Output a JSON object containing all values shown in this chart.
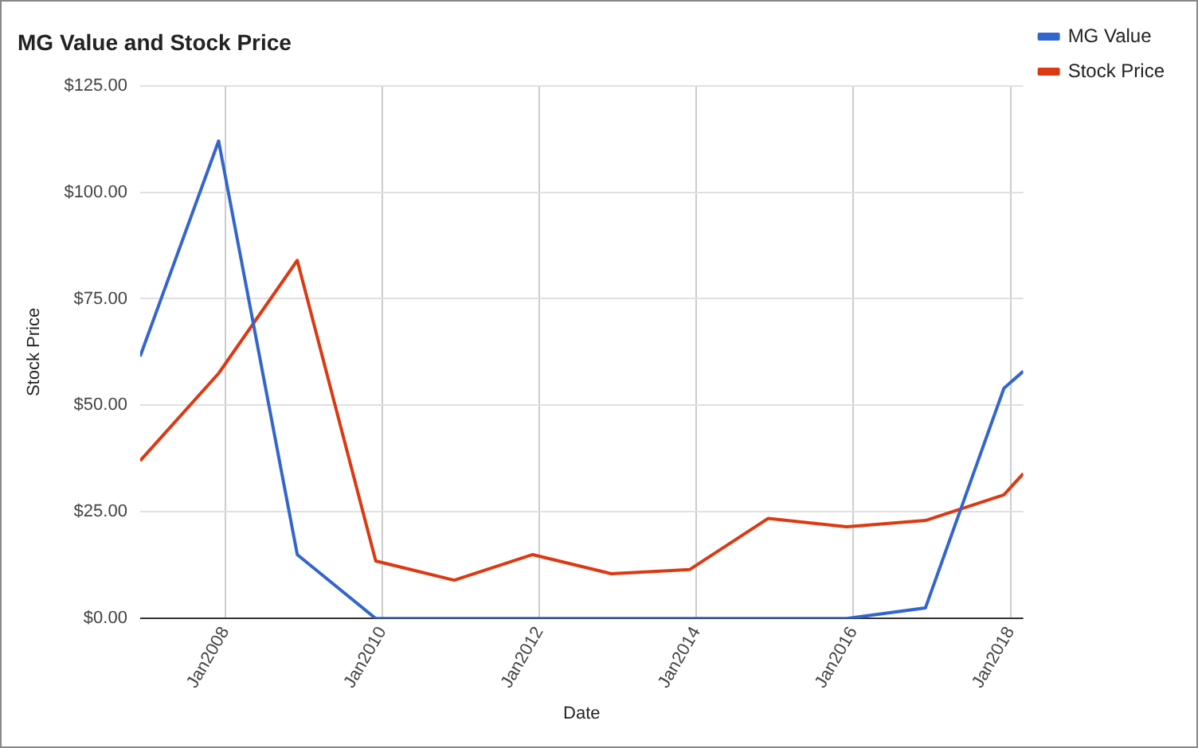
{
  "chart_data": {
    "type": "line",
    "title": "MG Value and Stock Price",
    "xlabel": "Date",
    "ylabel": "Stock Price",
    "x": [
      "2006-12",
      "2007-12",
      "2008-12",
      "2009-12",
      "2010-12",
      "2011-12",
      "2012-12",
      "2013-12",
      "2014-12",
      "2015-12",
      "2016-12",
      "2017-12",
      "2018-03"
    ],
    "series": [
      {
        "name": "MG Value",
        "color": "#3366cc",
        "values": [
          61.5,
          112,
          15,
          0,
          0,
          0,
          0,
          0,
          0,
          0,
          2.5,
          54,
          58
        ]
      },
      {
        "name": "Stock Price",
        "color": "#dc3912",
        "values": [
          37,
          57.5,
          84,
          13.5,
          9,
          15,
          10.5,
          11.5,
          23.5,
          21.5,
          23,
          29,
          34
        ]
      }
    ],
    "xlim": [
      "2006-12",
      "2018-03"
    ],
    "xticks": [
      {
        "value": "2008-01",
        "label": "Jan2008"
      },
      {
        "value": "2010-01",
        "label": "Jan2010"
      },
      {
        "value": "2012-01",
        "label": "Jan2012"
      },
      {
        "value": "2014-01",
        "label": "Jan2014"
      },
      {
        "value": "2016-01",
        "label": "Jan2016"
      },
      {
        "value": "2018-01",
        "label": "Jan2018"
      }
    ],
    "ylim": [
      0,
      125
    ],
    "yticks": [
      {
        "value": 0,
        "label": "$0.00"
      },
      {
        "value": 25,
        "label": "$25.00"
      },
      {
        "value": 50,
        "label": "$50.00"
      },
      {
        "value": 75,
        "label": "$75.00"
      },
      {
        "value": 100,
        "label": "$100.00"
      },
      {
        "value": 125,
        "label": "$125.00"
      }
    ],
    "grid": true,
    "legend": "right",
    "marker": "none",
    "line_style": "solid"
  }
}
